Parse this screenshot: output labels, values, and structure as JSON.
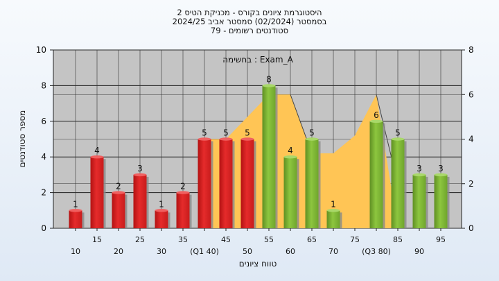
{
  "chart_data": {
    "type": "bar",
    "title_lines": [
      "היסטוגרמת ציונים בקורס - מכניקת הטיס 2",
      "בסמסטר  (02/2024)  סמסטר אביב 2024/25",
      "סטודנטים רשומים - 79"
    ],
    "annotation": "בחשימה : Exam_A",
    "xlabel": "טווח ציונים",
    "ylabel": "מספר סטודנטים",
    "ylim": [
      0,
      10
    ],
    "y_ticks": [
      "0",
      "2",
      "4",
      "6",
      "8",
      "10"
    ],
    "y2lim": [
      0,
      8
    ],
    "y2_ticks": [
      "0",
      "2",
      "4",
      "6",
      "8"
    ],
    "grid": true,
    "categories": [
      "10",
      "15",
      "20",
      "25",
      "30",
      "35",
      "40",
      "45",
      "50",
      "55",
      "60",
      "65",
      "70",
      "75",
      "80",
      "85",
      "90",
      "95"
    ],
    "x_tick_labels": [
      "10",
      "15",
      "20",
      "25",
      "30",
      "35",
      "(Q1 40)",
      "45",
      "50",
      "55",
      "60",
      "65",
      "70",
      "75",
      "(Q3 80)",
      "85",
      "90",
      "95"
    ],
    "values": [
      1,
      4,
      2,
      3,
      1,
      2,
      5,
      5,
      5,
      8,
      4,
      5,
      1,
      0,
      6,
      5,
      3,
      3
    ],
    "value_labels": [
      "1",
      "4",
      "2",
      "3",
      "1",
      "2",
      "5",
      "5",
      "5",
      "8",
      "4",
      "5",
      "1",
      "",
      "6",
      "5",
      "3",
      "3"
    ],
    "bar_colors": [
      "red",
      "red",
      "red",
      "red",
      "red",
      "red",
      "red",
      "red",
      "red",
      "green",
      "green",
      "green",
      "green",
      "green",
      "green",
      "green",
      "green",
      "green"
    ],
    "background_area": {
      "x": [
        40,
        40,
        45,
        55,
        60,
        65,
        70,
        75,
        80,
        85
      ],
      "y": [
        0,
        5,
        5,
        7.5,
        7.5,
        4.2,
        4.2,
        5.2,
        7.5,
        0
      ]
    },
    "colors": {
      "red_bar": "#e52b2b",
      "green_bar": "#8dc63f",
      "area": "#ffc555",
      "plot_bg": "#c4c4c4"
    }
  }
}
